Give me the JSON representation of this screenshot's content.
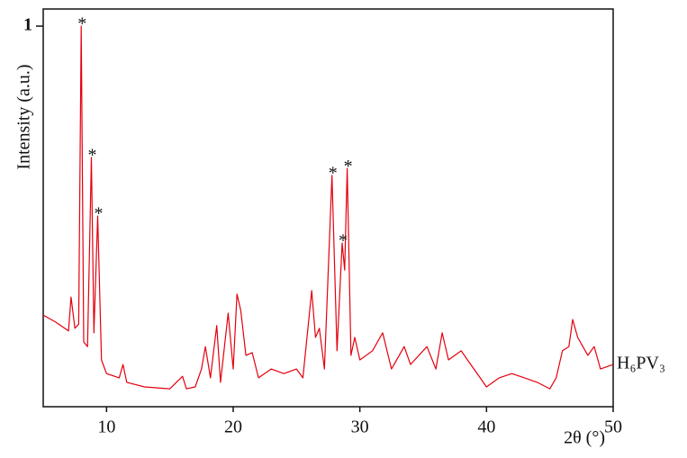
{
  "chart_data": {
    "type": "line",
    "ylabel": "Intensity (a.u.)",
    "xlabel": "2θ (°)",
    "xlim": [
      5,
      50
    ],
    "xticks": [
      10,
      20,
      30,
      40,
      50
    ],
    "ylim": [
      0,
      1.045
    ],
    "yticks": [
      1
    ],
    "x": [
      5,
      6,
      7,
      7.2,
      7.5,
      7.8,
      8.0,
      8.2,
      8.5,
      8.8,
      9.0,
      9.3,
      9.6,
      10,
      11,
      11.3,
      11.6,
      13,
      15,
      16,
      16.3,
      17,
      17.5,
      17.8,
      18.2,
      18.7,
      19,
      19.6,
      20,
      20.3,
      20.6,
      21,
      21.5,
      22,
      23,
      24,
      25,
      25.5,
      26.2,
      26.5,
      26.8,
      27.2,
      27.8,
      28.2,
      28.6,
      28.8,
      29.0,
      29.3,
      29.6,
      30,
      31,
      31.8,
      32.5,
      33.5,
      34,
      35.3,
      36,
      36.5,
      37,
      38,
      38.5,
      39.5,
      40,
      41,
      42,
      43,
      44,
      45,
      45.5,
      46,
      46.5,
      46.8,
      47.2,
      48,
      48.5,
      49,
      50
    ],
    "series": [
      {
        "name": "H₆PV₃",
        "color": "#e3000f",
        "values": [
          0.241,
          0.222,
          0.199,
          0.288,
          0.206,
          0.217,
          1.0,
          0.17,
          0.158,
          0.655,
          0.194,
          0.501,
          0.123,
          0.087,
          0.076,
          0.111,
          0.064,
          0.052,
          0.047,
          0.08,
          0.047,
          0.052,
          0.099,
          0.158,
          0.076,
          0.213,
          0.064,
          0.246,
          0.099,
          0.296,
          0.253,
          0.135,
          0.142,
          0.076,
          0.099,
          0.087,
          0.099,
          0.076,
          0.305,
          0.182,
          0.206,
          0.099,
          0.608,
          0.147,
          0.43,
          0.359,
          0.626,
          0.135,
          0.182,
          0.123,
          0.147,
          0.194,
          0.099,
          0.158,
          0.111,
          0.158,
          0.099,
          0.194,
          0.123,
          0.147,
          0.123,
          0.076,
          0.052,
          0.076,
          0.087,
          0.076,
          0.064,
          0.047,
          0.076,
          0.147,
          0.158,
          0.229,
          0.182,
          0.135,
          0.158,
          0.099,
          0.111
        ]
      }
    ],
    "annotations": [
      {
        "text": "*",
        "x": 8.0
      },
      {
        "text": "*",
        "x": 8.8
      },
      {
        "text": "*",
        "x": 9.3
      },
      {
        "text": "*",
        "x": 27.8
      },
      {
        "text": "*",
        "x": 28.6
      },
      {
        "text": "*",
        "x": 29.0
      }
    ]
  }
}
